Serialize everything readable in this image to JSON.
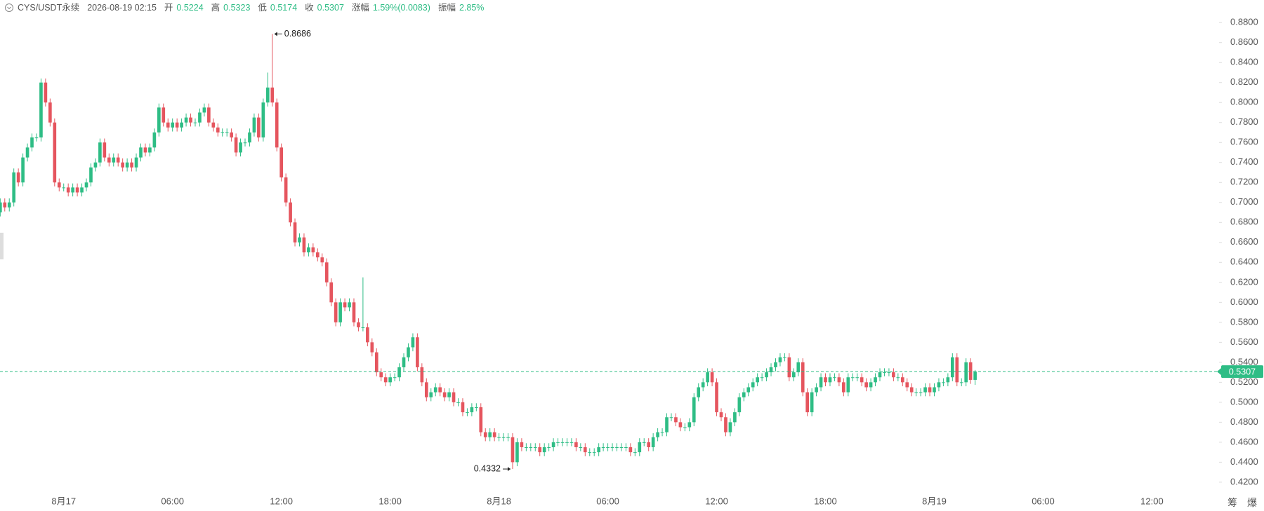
{
  "header": {
    "symbol": "CYS/USDT永续",
    "time": "2026-08-19 02:15",
    "open_label": "开",
    "high_label": "高",
    "low_label": "低",
    "close_label": "收",
    "change_label": "涨幅",
    "change": "1.59%(0.0083)",
    "amplitude_label": "振幅",
    "amplitude": "2.85%"
  },
  "toolbar": [
    "筹",
    "爆"
  ],
  "chart_data": {
    "type": "candlestick",
    "up_color": "#2ebd85",
    "down_color": "#e5555e",
    "last_price_color": "#2ebd85",
    "grid": false,
    "xlim": [
      -0.05,
      268.8
    ],
    "xticks": [
      {
        "value": 14,
        "label": "8月17"
      },
      {
        "value": 38,
        "label": "06:00"
      },
      {
        "value": 62,
        "label": "12:00"
      },
      {
        "value": 86,
        "label": "18:00"
      },
      {
        "value": 110,
        "label": "8月18"
      },
      {
        "value": 134,
        "label": "06:00"
      },
      {
        "value": 158,
        "label": "12:00"
      },
      {
        "value": 182,
        "label": "18:00"
      },
      {
        "value": 206,
        "label": "8月19"
      },
      {
        "value": 230,
        "label": "06:00"
      },
      {
        "value": 254,
        "label": "12:00"
      }
    ],
    "ylim": [
      0.4094,
      0.9026
    ],
    "yticks": [
      {
        "value": 0.42,
        "label": "0.4200"
      },
      {
        "value": 0.44,
        "label": "0.4400"
      },
      {
        "value": 0.46,
        "label": "0.4600"
      },
      {
        "value": 0.48,
        "label": "0.4800"
      },
      {
        "value": 0.5,
        "label": "0.5000"
      },
      {
        "value": 0.52,
        "label": "0.5200"
      },
      {
        "value": 0.54,
        "label": "0.5400"
      },
      {
        "value": 0.56,
        "label": "0.5600"
      },
      {
        "value": 0.58,
        "label": "0.5800"
      },
      {
        "value": 0.6,
        "label": "0.6000"
      },
      {
        "value": 0.62,
        "label": "0.6200"
      },
      {
        "value": 0.64,
        "label": "0.6400"
      },
      {
        "value": 0.66,
        "label": "0.6600"
      },
      {
        "value": 0.68,
        "label": "0.6800"
      },
      {
        "value": 0.7,
        "label": "0.7000"
      },
      {
        "value": 0.72,
        "label": "0.7200"
      },
      {
        "value": 0.74,
        "label": "0.7400"
      },
      {
        "value": 0.76,
        "label": "0.7600"
      },
      {
        "value": 0.78,
        "label": "0.7800"
      },
      {
        "value": 0.8,
        "label": "0.8000"
      },
      {
        "value": 0.82,
        "label": "0.8200"
      },
      {
        "value": 0.84,
        "label": "0.8400"
      },
      {
        "value": 0.86,
        "label": "0.8600"
      },
      {
        "value": 0.88,
        "label": "0.8800"
      }
    ],
    "candles": [
      [
        0.69,
        0.704,
        0.686,
        0.7
      ],
      [
        0.7,
        0.704,
        0.691,
        0.695
      ],
      [
        0.695,
        0.704,
        0.691,
        0.7
      ],
      [
        0.7,
        0.734,
        0.696,
        0.73
      ],
      [
        0.73,
        0.734,
        0.716,
        0.72
      ],
      [
        0.72,
        0.749,
        0.716,
        0.745
      ],
      [
        0.745,
        0.759,
        0.741,
        0.755
      ],
      [
        0.755,
        0.769,
        0.751,
        0.765
      ],
      [
        0.765,
        0.769,
        0.761,
        0.765
      ],
      [
        0.765,
        0.824,
        0.761,
        0.82
      ],
      [
        0.82,
        0.824,
        0.796,
        0.8
      ],
      [
        0.8,
        0.804,
        0.776,
        0.78
      ],
      [
        0.78,
        0.784,
        0.716,
        0.72
      ],
      [
        0.72,
        0.724,
        0.711,
        0.715
      ],
      [
        0.715,
        0.719,
        0.711,
        0.715
      ],
      [
        0.715,
        0.719,
        0.706,
        0.71
      ],
      [
        0.71,
        0.719,
        0.706,
        0.715
      ],
      [
        0.715,
        0.719,
        0.706,
        0.71
      ],
      [
        0.71,
        0.719,
        0.706,
        0.715
      ],
      [
        0.715,
        0.724,
        0.711,
        0.72
      ],
      [
        0.72,
        0.739,
        0.716,
        0.735
      ],
      [
        0.735,
        0.744,
        0.731,
        0.74
      ],
      [
        0.74,
        0.764,
        0.736,
        0.76
      ],
      [
        0.76,
        0.764,
        0.741,
        0.745
      ],
      [
        0.745,
        0.749,
        0.736,
        0.74
      ],
      [
        0.74,
        0.749,
        0.736,
        0.745
      ],
      [
        0.745,
        0.749,
        0.736,
        0.74
      ],
      [
        0.74,
        0.744,
        0.731,
        0.735
      ],
      [
        0.735,
        0.744,
        0.731,
        0.74
      ],
      [
        0.74,
        0.744,
        0.731,
        0.735
      ],
      [
        0.735,
        0.749,
        0.731,
        0.745
      ],
      [
        0.745,
        0.759,
        0.741,
        0.755
      ],
      [
        0.755,
        0.759,
        0.746,
        0.75
      ],
      [
        0.75,
        0.759,
        0.746,
        0.755
      ],
      [
        0.755,
        0.774,
        0.751,
        0.77
      ],
      [
        0.77,
        0.799,
        0.766,
        0.795
      ],
      [
        0.795,
        0.799,
        0.776,
        0.78
      ],
      [
        0.78,
        0.784,
        0.771,
        0.775
      ],
      [
        0.775,
        0.784,
        0.771,
        0.78
      ],
      [
        0.78,
        0.784,
        0.771,
        0.775
      ],
      [
        0.775,
        0.784,
        0.771,
        0.78
      ],
      [
        0.78,
        0.789,
        0.776,
        0.785
      ],
      [
        0.785,
        0.789,
        0.776,
        0.78
      ],
      [
        0.78,
        0.784,
        0.776,
        0.78
      ],
      [
        0.78,
        0.794,
        0.776,
        0.79
      ],
      [
        0.79,
        0.799,
        0.786,
        0.795
      ],
      [
        0.795,
        0.799,
        0.776,
        0.78
      ],
      [
        0.78,
        0.784,
        0.771,
        0.775
      ],
      [
        0.775,
        0.779,
        0.766,
        0.77
      ],
      [
        0.77,
        0.774,
        0.766,
        0.77
      ],
      [
        0.77,
        0.774,
        0.766,
        0.77
      ],
      [
        0.77,
        0.774,
        0.761,
        0.765
      ],
      [
        0.765,
        0.769,
        0.746,
        0.75
      ],
      [
        0.75,
        0.764,
        0.746,
        0.76
      ],
      [
        0.76,
        0.764,
        0.756,
        0.76
      ],
      [
        0.76,
        0.774,
        0.756,
        0.77
      ],
      [
        0.77,
        0.789,
        0.766,
        0.785
      ],
      [
        0.785,
        0.789,
        0.761,
        0.765
      ],
      [
        0.765,
        0.804,
        0.761,
        0.8
      ],
      [
        0.8,
        0.83,
        0.796,
        0.815
      ],
      [
        0.815,
        0.8686,
        0.796,
        0.8
      ],
      [
        0.8,
        0.804,
        0.751,
        0.755
      ],
      [
        0.755,
        0.759,
        0.721,
        0.725
      ],
      [
        0.725,
        0.729,
        0.696,
        0.7
      ],
      [
        0.7,
        0.704,
        0.676,
        0.68
      ],
      [
        0.68,
        0.684,
        0.656,
        0.66
      ],
      [
        0.66,
        0.669,
        0.656,
        0.665
      ],
      [
        0.665,
        0.669,
        0.646,
        0.65
      ],
      [
        0.65,
        0.659,
        0.646,
        0.655
      ],
      [
        0.655,
        0.659,
        0.646,
        0.65
      ],
      [
        0.65,
        0.654,
        0.641,
        0.645
      ],
      [
        0.645,
        0.649,
        0.636,
        0.64
      ],
      [
        0.64,
        0.644,
        0.616,
        0.62
      ],
      [
        0.62,
        0.624,
        0.596,
        0.6
      ],
      [
        0.6,
        0.604,
        0.576,
        0.58
      ],
      [
        0.58,
        0.604,
        0.576,
        0.6
      ],
      [
        0.6,
        0.604,
        0.591,
        0.595
      ],
      [
        0.595,
        0.604,
        0.591,
        0.6
      ],
      [
        0.6,
        0.604,
        0.576,
        0.58
      ],
      [
        0.58,
        0.584,
        0.571,
        0.575
      ],
      [
        0.575,
        0.625,
        0.571,
        0.575
      ],
      [
        0.575,
        0.579,
        0.556,
        0.56
      ],
      [
        0.56,
        0.564,
        0.546,
        0.55
      ],
      [
        0.55,
        0.554,
        0.526,
        0.53
      ],
      [
        0.53,
        0.534,
        0.521,
        0.525
      ],
      [
        0.525,
        0.529,
        0.516,
        0.52
      ],
      [
        0.52,
        0.529,
        0.516,
        0.525
      ],
      [
        0.525,
        0.529,
        0.521,
        0.525
      ],
      [
        0.525,
        0.539,
        0.521,
        0.535
      ],
      [
        0.535,
        0.549,
        0.531,
        0.545
      ],
      [
        0.545,
        0.559,
        0.541,
        0.555
      ],
      [
        0.555,
        0.569,
        0.551,
        0.565
      ],
      [
        0.565,
        0.569,
        0.531,
        0.535
      ],
      [
        0.535,
        0.539,
        0.516,
        0.52
      ],
      [
        0.52,
        0.524,
        0.501,
        0.505
      ],
      [
        0.505,
        0.514,
        0.501,
        0.51
      ],
      [
        0.51,
        0.519,
        0.506,
        0.515
      ],
      [
        0.515,
        0.519,
        0.506,
        0.51
      ],
      [
        0.51,
        0.514,
        0.501,
        0.505
      ],
      [
        0.505,
        0.514,
        0.501,
        0.51
      ],
      [
        0.51,
        0.514,
        0.496,
        0.5
      ],
      [
        0.5,
        0.504,
        0.496,
        0.5
      ],
      [
        0.5,
        0.504,
        0.486,
        0.49
      ],
      [
        0.49,
        0.494,
        0.486,
        0.49
      ],
      [
        0.49,
        0.499,
        0.486,
        0.495
      ],
      [
        0.495,
        0.499,
        0.491,
        0.495
      ],
      [
        0.495,
        0.499,
        0.466,
        0.47
      ],
      [
        0.47,
        0.474,
        0.461,
        0.465
      ],
      [
        0.465,
        0.474,
        0.461,
        0.47
      ],
      [
        0.47,
        0.474,
        0.461,
        0.465
      ],
      [
        0.465,
        0.469,
        0.461,
        0.465
      ],
      [
        0.465,
        0.469,
        0.461,
        0.465
      ],
      [
        0.465,
        0.469,
        0.461,
        0.465
      ],
      [
        0.465,
        0.469,
        0.4332,
        0.44
      ],
      [
        0.44,
        0.464,
        0.436,
        0.46
      ],
      [
        0.46,
        0.464,
        0.451,
        0.455
      ],
      [
        0.455,
        0.459,
        0.451,
        0.455
      ],
      [
        0.455,
        0.459,
        0.451,
        0.455
      ],
      [
        0.455,
        0.459,
        0.451,
        0.455
      ],
      [
        0.455,
        0.459,
        0.446,
        0.45
      ],
      [
        0.45,
        0.459,
        0.446,
        0.455
      ],
      [
        0.455,
        0.459,
        0.451,
        0.455
      ],
      [
        0.455,
        0.464,
        0.451,
        0.46
      ],
      [
        0.46,
        0.464,
        0.456,
        0.46
      ],
      [
        0.46,
        0.464,
        0.456,
        0.46
      ],
      [
        0.46,
        0.464,
        0.456,
        0.46
      ],
      [
        0.46,
        0.464,
        0.456,
        0.46
      ],
      [
        0.46,
        0.464,
        0.451,
        0.455
      ],
      [
        0.455,
        0.459,
        0.451,
        0.455
      ],
      [
        0.455,
        0.459,
        0.446,
        0.45
      ],
      [
        0.45,
        0.454,
        0.446,
        0.45
      ],
      [
        0.45,
        0.454,
        0.446,
        0.45
      ],
      [
        0.45,
        0.459,
        0.446,
        0.455
      ],
      [
        0.455,
        0.459,
        0.451,
        0.455
      ],
      [
        0.455,
        0.459,
        0.451,
        0.455
      ],
      [
        0.455,
        0.459,
        0.451,
        0.455
      ],
      [
        0.455,
        0.459,
        0.451,
        0.455
      ],
      [
        0.455,
        0.459,
        0.451,
        0.455
      ],
      [
        0.455,
        0.459,
        0.451,
        0.455
      ],
      [
        0.455,
        0.459,
        0.446,
        0.45
      ],
      [
        0.45,
        0.454,
        0.446,
        0.45
      ],
      [
        0.45,
        0.464,
        0.446,
        0.46
      ],
      [
        0.46,
        0.464,
        0.456,
        0.46
      ],
      [
        0.46,
        0.464,
        0.451,
        0.455
      ],
      [
        0.455,
        0.469,
        0.451,
        0.465
      ],
      [
        0.465,
        0.474,
        0.461,
        0.47
      ],
      [
        0.47,
        0.474,
        0.466,
        0.47
      ],
      [
        0.47,
        0.489,
        0.466,
        0.485
      ],
      [
        0.485,
        0.489,
        0.481,
        0.485
      ],
      [
        0.485,
        0.489,
        0.476,
        0.48
      ],
      [
        0.48,
        0.484,
        0.471,
        0.475
      ],
      [
        0.475,
        0.479,
        0.471,
        0.475
      ],
      [
        0.475,
        0.484,
        0.471,
        0.48
      ],
      [
        0.48,
        0.509,
        0.476,
        0.505
      ],
      [
        0.505,
        0.519,
        0.501,
        0.515
      ],
      [
        0.515,
        0.524,
        0.511,
        0.52
      ],
      [
        0.52,
        0.534,
        0.516,
        0.53
      ],
      [
        0.53,
        0.534,
        0.516,
        0.52
      ],
      [
        0.52,
        0.524,
        0.486,
        0.49
      ],
      [
        0.49,
        0.494,
        0.481,
        0.485
      ],
      [
        0.485,
        0.489,
        0.466,
        0.47
      ],
      [
        0.47,
        0.484,
        0.466,
        0.48
      ],
      [
        0.48,
        0.494,
        0.476,
        0.49
      ],
      [
        0.49,
        0.509,
        0.486,
        0.505
      ],
      [
        0.505,
        0.514,
        0.501,
        0.51
      ],
      [
        0.51,
        0.519,
        0.506,
        0.515
      ],
      [
        0.515,
        0.524,
        0.511,
        0.52
      ],
      [
        0.52,
        0.529,
        0.516,
        0.525
      ],
      [
        0.525,
        0.529,
        0.521,
        0.525
      ],
      [
        0.525,
        0.534,
        0.521,
        0.53
      ],
      [
        0.53,
        0.539,
        0.526,
        0.535
      ],
      [
        0.535,
        0.544,
        0.531,
        0.54
      ],
      [
        0.54,
        0.549,
        0.536,
        0.545
      ],
      [
        0.545,
        0.549,
        0.541,
        0.545
      ],
      [
        0.545,
        0.549,
        0.521,
        0.525
      ],
      [
        0.525,
        0.534,
        0.521,
        0.53
      ],
      [
        0.53,
        0.544,
        0.526,
        0.54
      ],
      [
        0.54,
        0.544,
        0.506,
        0.51
      ],
      [
        0.51,
        0.514,
        0.486,
        0.49
      ],
      [
        0.49,
        0.514,
        0.486,
        0.51
      ],
      [
        0.51,
        0.519,
        0.506,
        0.515
      ],
      [
        0.515,
        0.529,
        0.511,
        0.525
      ],
      [
        0.525,
        0.529,
        0.516,
        0.52
      ],
      [
        0.52,
        0.529,
        0.516,
        0.525
      ],
      [
        0.525,
        0.529,
        0.521,
        0.525
      ],
      [
        0.525,
        0.529,
        0.516,
        0.52
      ],
      [
        0.52,
        0.524,
        0.506,
        0.51
      ],
      [
        0.51,
        0.529,
        0.506,
        0.525
      ],
      [
        0.525,
        0.529,
        0.521,
        0.525
      ],
      [
        0.525,
        0.529,
        0.521,
        0.525
      ],
      [
        0.525,
        0.529,
        0.516,
        0.52
      ],
      [
        0.52,
        0.524,
        0.511,
        0.515
      ],
      [
        0.515,
        0.524,
        0.511,
        0.52
      ],
      [
        0.52,
        0.529,
        0.516,
        0.525
      ],
      [
        0.525,
        0.534,
        0.521,
        0.53
      ],
      [
        0.53,
        0.534,
        0.526,
        0.53
      ],
      [
        0.53,
        0.534,
        0.526,
        0.53
      ],
      [
        0.53,
        0.534,
        0.521,
        0.525
      ],
      [
        0.525,
        0.529,
        0.521,
        0.525
      ],
      [
        0.525,
        0.529,
        0.516,
        0.52
      ],
      [
        0.52,
        0.524,
        0.511,
        0.515
      ],
      [
        0.515,
        0.519,
        0.506,
        0.51
      ],
      [
        0.51,
        0.514,
        0.506,
        0.51
      ],
      [
        0.51,
        0.514,
        0.506,
        0.51
      ],
      [
        0.51,
        0.519,
        0.506,
        0.515
      ],
      [
        0.515,
        0.519,
        0.506,
        0.51
      ],
      [
        0.51,
        0.519,
        0.506,
        0.515
      ],
      [
        0.515,
        0.524,
        0.511,
        0.52
      ],
      [
        0.52,
        0.524,
        0.516,
        0.52
      ],
      [
        0.52,
        0.529,
        0.516,
        0.525
      ],
      [
        0.525,
        0.549,
        0.521,
        0.545
      ],
      [
        0.545,
        0.549,
        0.516,
        0.52
      ],
      [
        0.52,
        0.524,
        0.516,
        0.52
      ],
      [
        0.52,
        0.544,
        0.516,
        0.54
      ],
      [
        0.54,
        0.544,
        0.5184,
        0.5224
      ],
      [
        0.5224,
        0.5323,
        0.5174,
        0.5307
      ]
    ]
  }
}
